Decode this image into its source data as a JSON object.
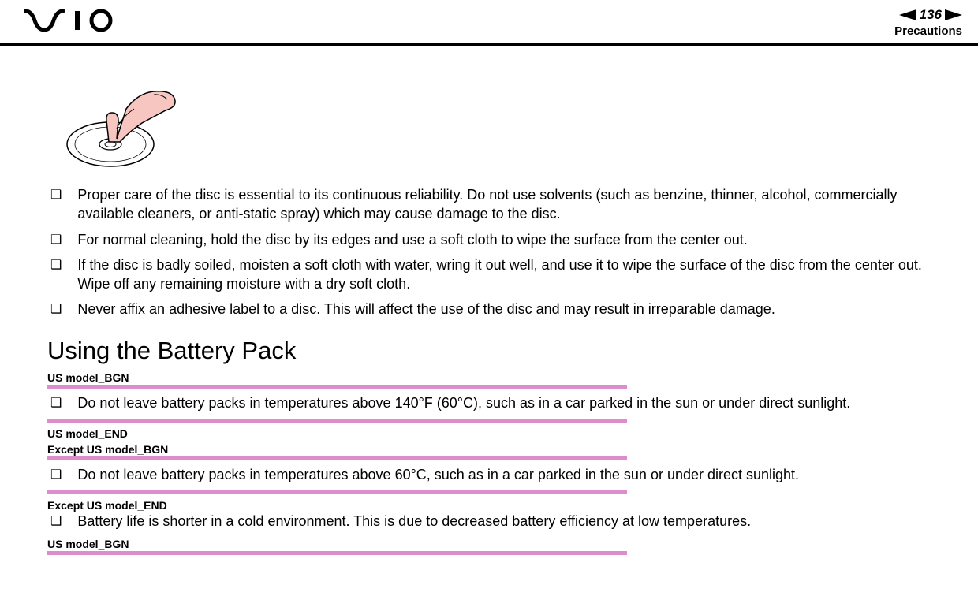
{
  "header": {
    "page_number": "136",
    "section": "Precautions"
  },
  "colors": {
    "divider": "#dd8ccc",
    "text": "#000000",
    "hand_fill": "#f7c6c0",
    "hand_outline": "#000000"
  },
  "bullets_top": [
    "Proper care of the disc is essential to its continuous reliability. Do not use solvents (such as benzine, thinner, alcohol, commercially available cleaners, or anti-static spray) which may cause damage to the disc.",
    "For normal cleaning, hold the disc by its edges and use a soft cloth to wipe the surface from the center out.",
    "If the disc is badly soiled, moisten a soft cloth with water, wring it out well, and use it to wipe the surface of the disc from the center out. Wipe off any remaining moisture with a dry soft cloth.",
    "Never affix an adhesive label to a disc. This will affect the use of the disc and may result in irreparable damage."
  ],
  "heading": "Using the Battery Pack",
  "sections": [
    {
      "type": "tag",
      "text": "US model_BGN"
    },
    {
      "type": "divider"
    },
    {
      "type": "bullet",
      "text": "Do not leave battery packs in temperatures above 140°F (60°C), such as in a car parked in the sun or under direct sunlight."
    },
    {
      "type": "divider"
    },
    {
      "type": "tag",
      "text": "US model_END"
    },
    {
      "type": "tag",
      "text": "Except US model_BGN"
    },
    {
      "type": "divider"
    },
    {
      "type": "bullet",
      "text": "Do not leave battery packs in temperatures above 60°C, such as in a car parked in the sun or under direct sunlight."
    },
    {
      "type": "divider"
    },
    {
      "type": "tag",
      "text": "Except US model_END"
    },
    {
      "type": "bullet",
      "text": "Battery life is shorter in a cold environment. This is due to decreased battery efficiency at low temperatures."
    },
    {
      "type": "tag",
      "text": "US model_BGN"
    },
    {
      "type": "divider"
    }
  ]
}
